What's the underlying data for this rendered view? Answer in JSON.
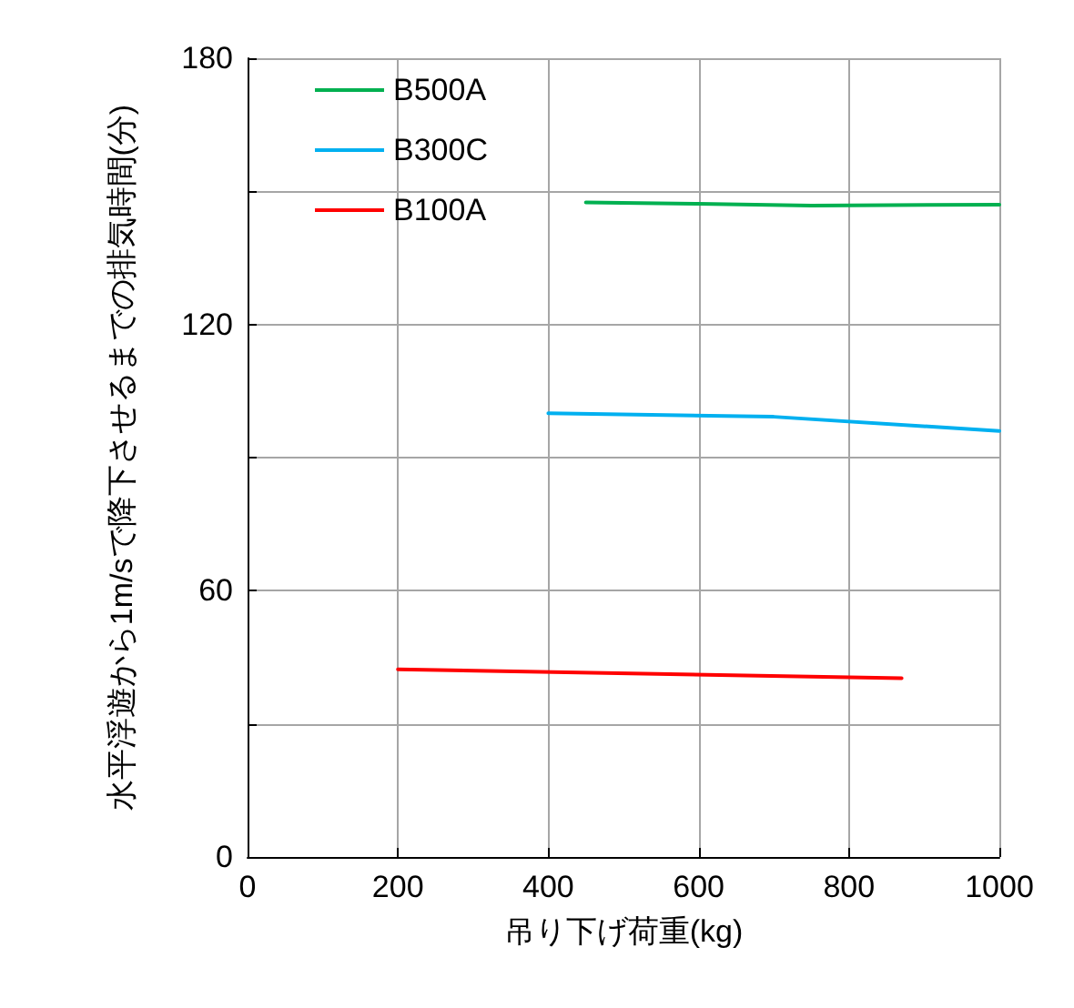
{
  "chart_data": {
    "type": "line",
    "xlabel": "吊り下げ荷重(kg)",
    "ylabel": "水平浮遊から1m/sで降下させるまでの排気時間(分)",
    "xlim": [
      0,
      1000
    ],
    "xticks": [
      0,
      200,
      400,
      600,
      800,
      1000
    ],
    "ylim": [
      0,
      180
    ],
    "yticks": [
      0,
      {
        "value": 30,
        "label": null
      },
      60,
      {
        "value": 90,
        "label": null
      },
      120,
      {
        "value": 150,
        "label": null
      },
      180
    ],
    "grid": true,
    "legend": "top left",
    "marker": "none",
    "line_style": "solid",
    "series": [
      {
        "name": "B500A",
        "color": "#00b050",
        "x": [
          450,
          600,
          750,
          1000
        ],
        "values": [
          147.5,
          147.2,
          146.8,
          147
        ]
      },
      {
        "name": "B300C",
        "color": "#00b0f0",
        "x": [
          400,
          700,
          1000
        ],
        "values": [
          100,
          99.2,
          96
        ]
      },
      {
        "name": "B100A",
        "color": "#ff0000",
        "x": [
          200,
          870
        ],
        "values": [
          42.3,
          40.3
        ]
      }
    ]
  }
}
